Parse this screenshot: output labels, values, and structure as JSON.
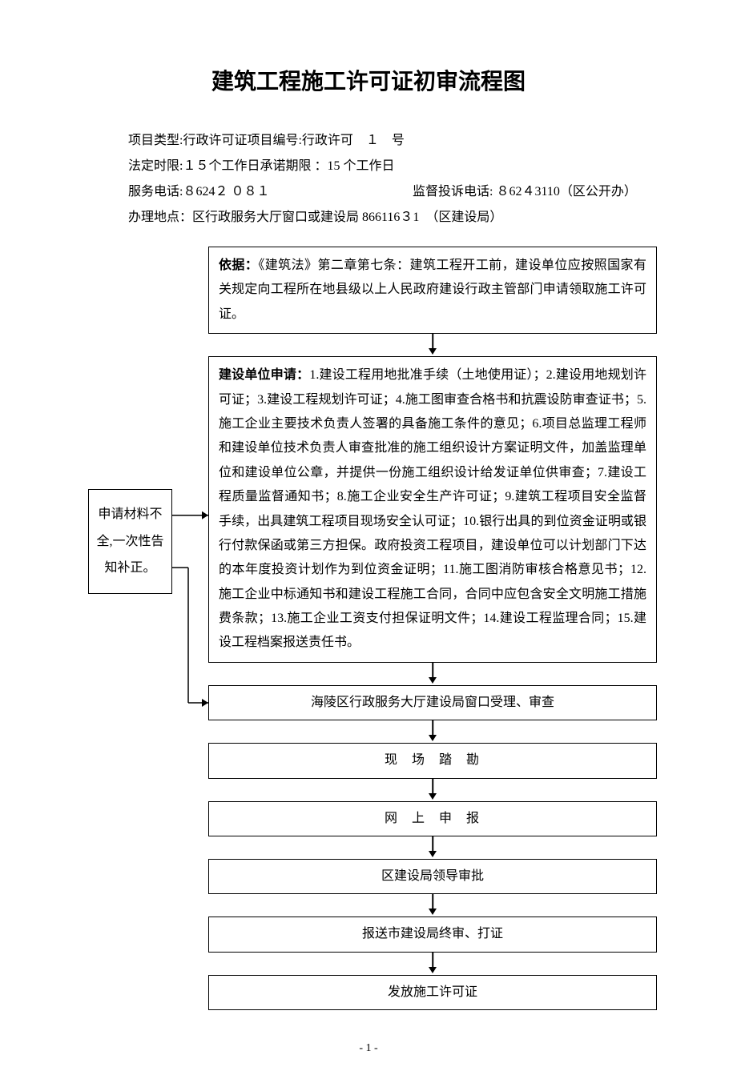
{
  "title": "建筑工程施工许可证初审流程图",
  "header": {
    "line1": "项目类型:行政许可证项目编号:行政许可　１　号",
    "line2": "法定时限:１５个工作日承诺期限 ：15 个工作日",
    "line3_left": "服务电话:８624２ ０８１",
    "line3_right": "监督投诉电话: ８62４3110（区公开办）",
    "line4": "办理地点：区行政服务大厅窗口或建设局 866116３1　（区建设局）"
  },
  "flowchart": {
    "basis": {
      "label": "依据：",
      "text": "《建筑法》第二章第七条：建筑工程开工前，建设单位应按照国家有关规定向工程所在地县级以上人民政府建设行政主管部门申请领取施工许可证。"
    },
    "apply": {
      "label": "建设单位申请：",
      "text": "1.建设工程用地批准手续（土地使用证）；2.建设用地规划许可证；3.建设工程规划许可证；4.施工图审查合格书和抗震设防审查证书；5.施工企业主要技术负责人签署的具备施工条件的意见；6.项目总监理工程师和建设单位技术负责人审查批准的施工组织设计方案证明文件，加盖监理单位和建设单位公章，并提供一份施工组织设计给发证单位供审查；7.建设工程质量监督通知书；8.施工企业安全生产许可证；9.建筑工程项目安全监督手续，出具建筑工程项目现场安全认可证；10.银行出具的到位资金证明或银行付款保函或第三方担保。政府投资工程项目，建设单位可以计划部门下达的本年度投资计划作为到位资金证明；11.施工图消防审核合格意见书；12.施工企业中标通知书和建设工程施工合同，合同中应包含安全文明施工措施费条款；13.施工企业工资支付担保证明文件；14.建设工程监理合同；15.建设工程档案报送责任书。"
    },
    "side_note": "申请材料不全,一次性告知补正。",
    "steps": [
      "海陵区行政服务大厅建设局窗口受理、审查",
      "现场踏勘",
      "网上申报",
      "区建设局领导审批",
      "报送市建设局终审、打证",
      "发放施工许可证"
    ]
  },
  "page_number": "- 1 -",
  "style": {
    "border_color": "#000000",
    "background": "#ffffff",
    "text_color": "#000000",
    "title_fontsize": 28,
    "body_fontsize": 16,
    "box_border_width": 1.5
  }
}
